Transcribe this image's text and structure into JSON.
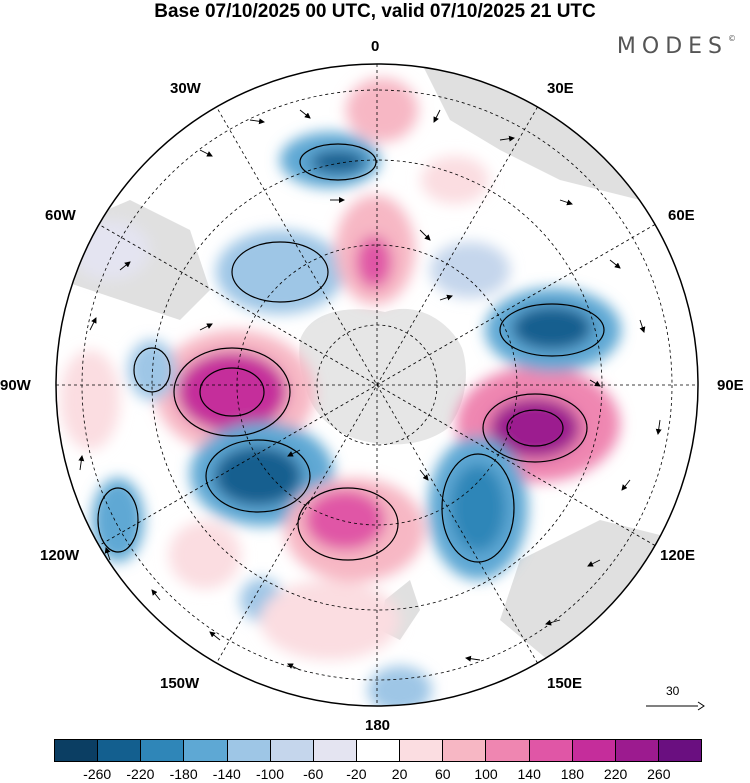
{
  "title": "Base 07/10/2025 00 UTC, valid 07/10/2025 21 UTC",
  "brand": "MODES",
  "brand_mark": "©",
  "longitude_labels": {
    "lon_0": "0",
    "lon_30e": "30E",
    "lon_60e": "60E",
    "lon_90e": "90E",
    "lon_120e": "120E",
    "lon_150e": "150E",
    "lon_180": "180",
    "lon_150w": "150W",
    "lon_120w": "120W",
    "lon_90w": "90W",
    "lon_60w": "60W",
    "lon_30w": "30W"
  },
  "reference_vector": {
    "label": "30"
  },
  "colorbar": {
    "colors": [
      "#0b3e63",
      "#135f8f",
      "#2f86b8",
      "#5ea8d4",
      "#9ec6e6",
      "#c5d6ec",
      "#e4e4f1",
      "#ffffff",
      "#fbdde1",
      "#f7b7c4",
      "#ef86b1",
      "#e056a6",
      "#c52d9b",
      "#9c1b8f",
      "#6a0f80"
    ],
    "ticks": [
      "-260",
      "-220",
      "-180",
      "-140",
      "-100",
      "-60",
      "-20",
      "20",
      "60",
      "100",
      "140",
      "180",
      "220",
      "260"
    ]
  },
  "colors": {
    "land": "#d7d7d7",
    "coast": "#4a4a4a",
    "grid": "#000000"
  }
}
